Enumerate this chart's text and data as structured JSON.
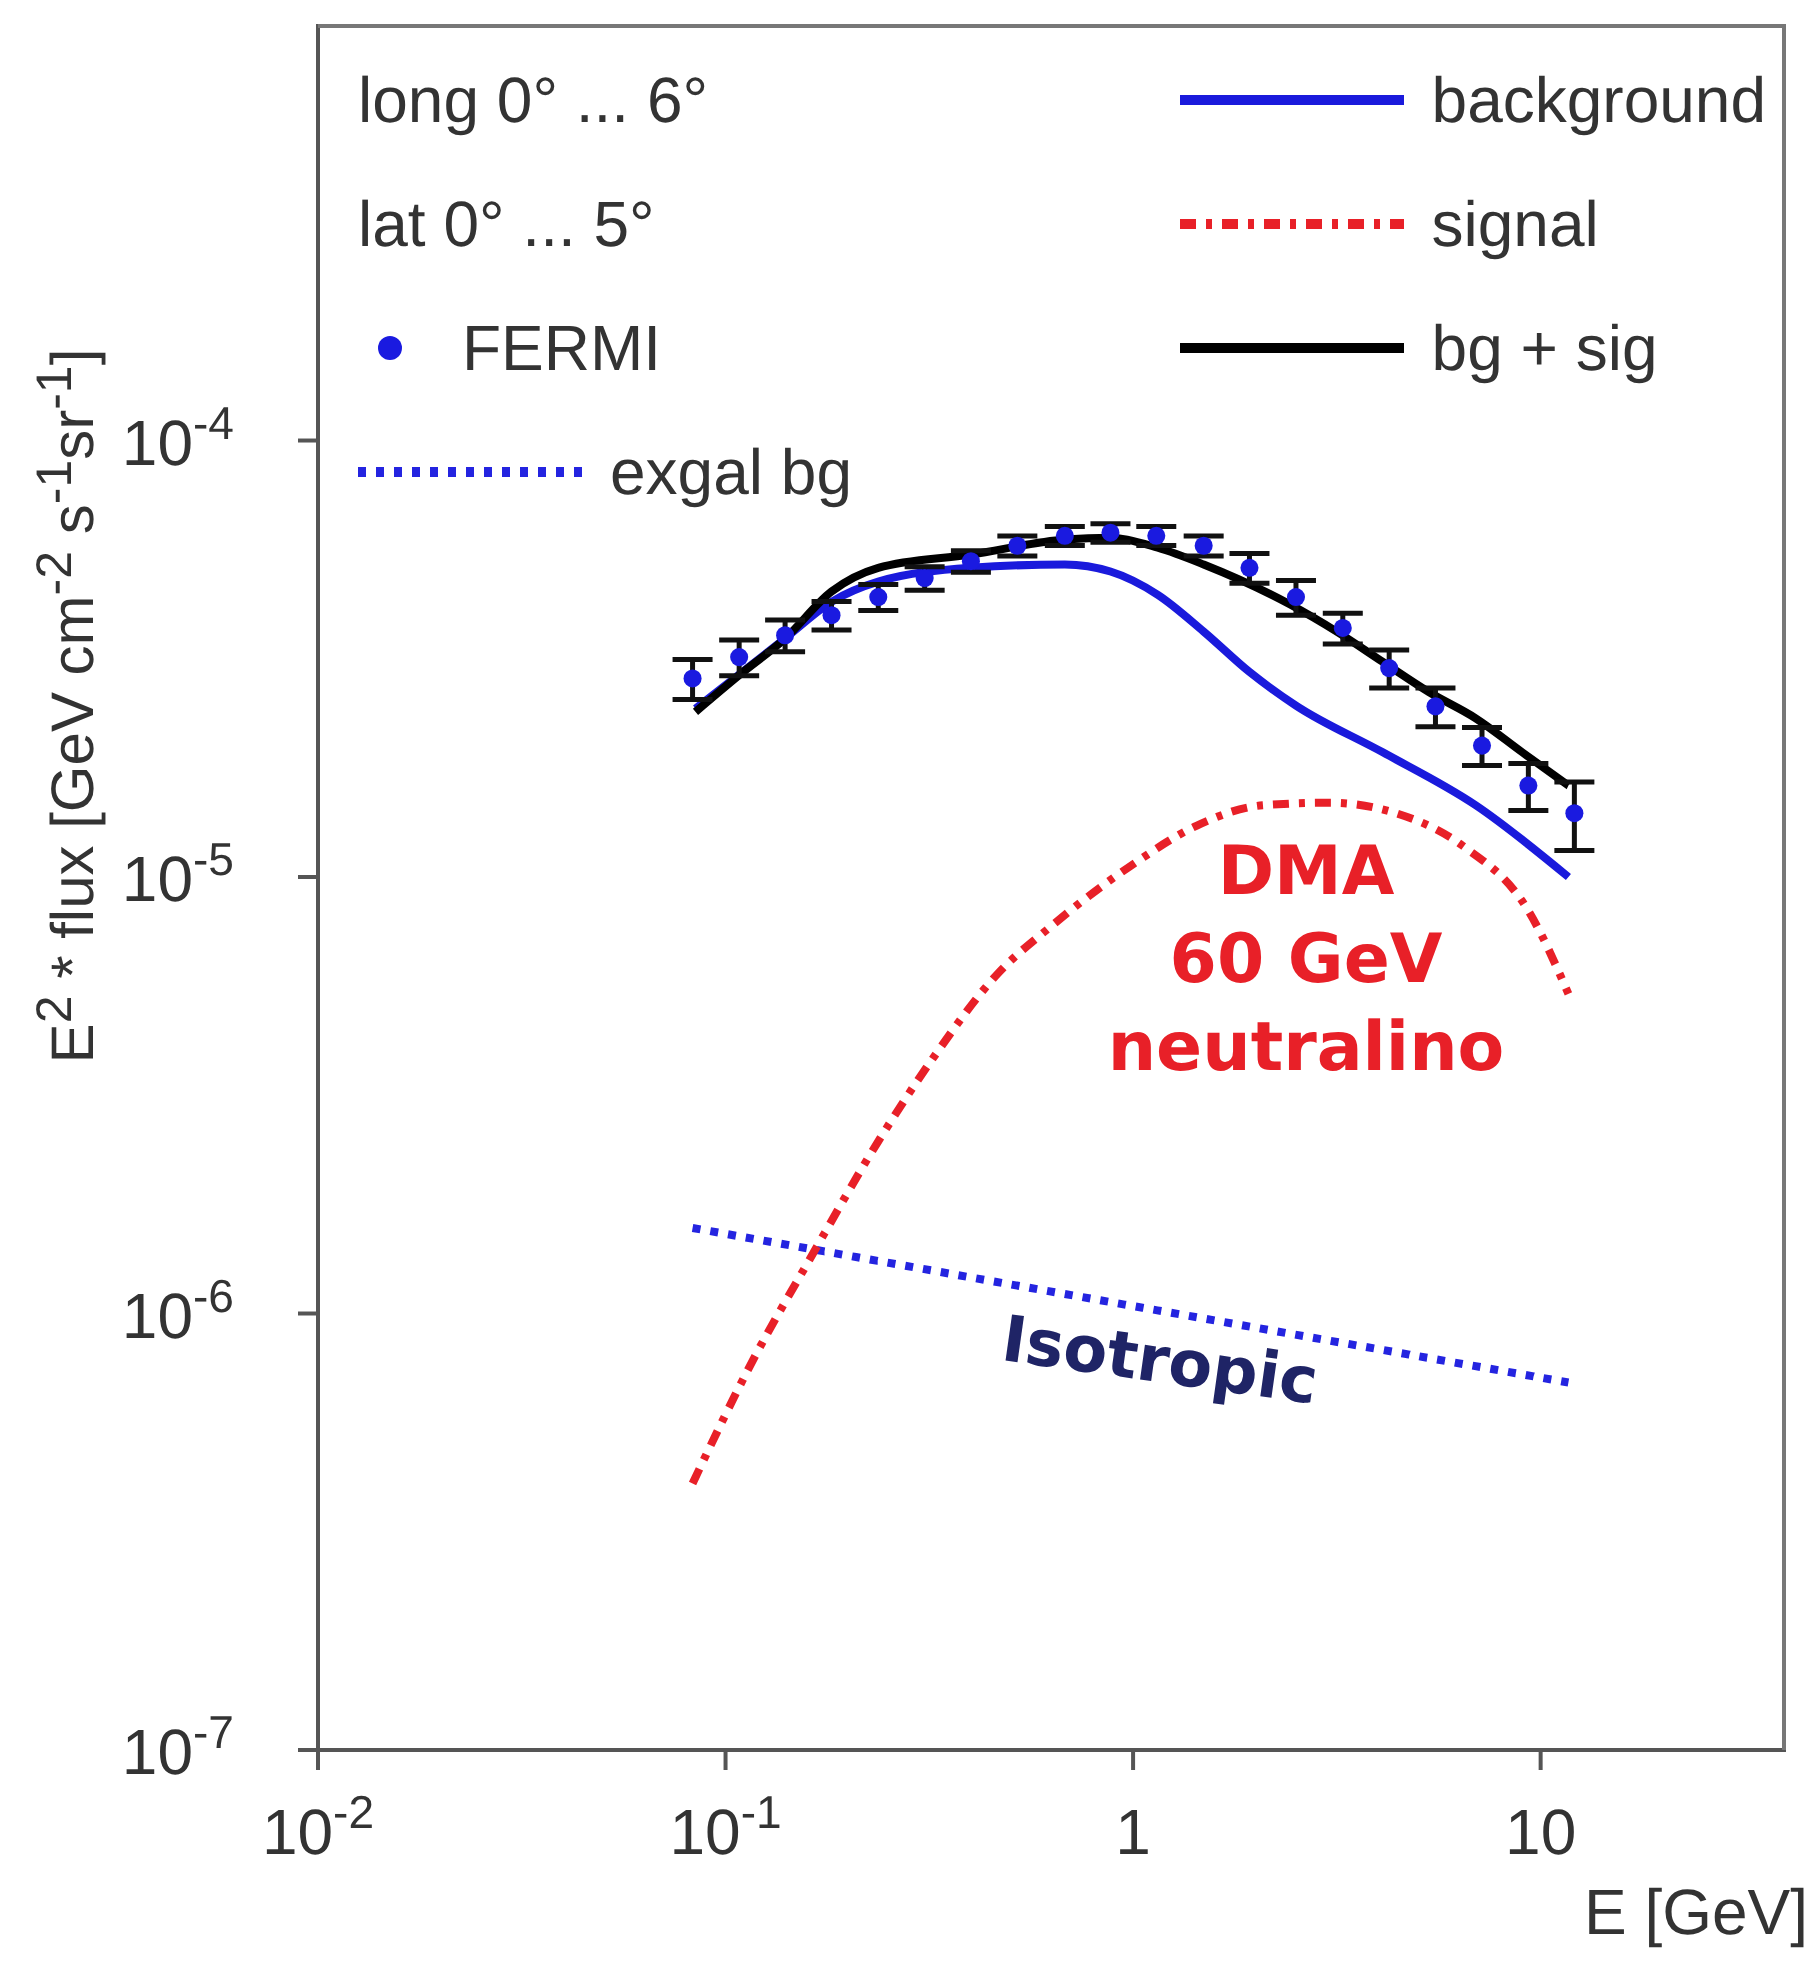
{
  "chart_data": {
    "type": "line",
    "log": "xy",
    "legend": "top",
    "xlabel": "E [GeV]",
    "ylabel": "E$^{2}$ * flux [GeV cm$^{-2}$ s$^{-1}$sr$^{-1}$]",
    "xlim": [
      0.01,
      40
    ],
    "ylim": [
      1e-07,
      0.0009
    ],
    "xticks": [
      {
        "value": 0.01,
        "label": "10$^{-2}$"
      },
      {
        "value": 0.1,
        "label": "10$^{-1}$"
      },
      1,
      10
    ],
    "yticks": [
      {
        "value": 1e-07,
        "label": "10$^{-7}$"
      },
      {
        "value": 1e-06,
        "label": "10$^{-6}$"
      },
      {
        "value": 1e-05,
        "label": "10$^{-5}$"
      },
      {
        "value": 0.0001,
        "label": "10$^{-4}$"
      }
    ],
    "annotations": [
      "long 0° ... 6°",
      "lat 0° ... 5°",
      "DMA\n60 GeV\nneutralino",
      "Isotropic"
    ],
    "series": [
      {
        "name": "FERMI",
        "type": "scatter",
        "marker": "circle",
        "color": "#1a1ae0",
        "x": [
          0.083,
          0.108,
          0.14,
          0.182,
          0.237,
          0.308,
          0.4,
          0.52,
          0.68,
          0.88,
          1.14,
          1.49,
          1.93,
          2.51,
          3.27,
          4.25,
          5.52,
          7.18,
          9.33,
          12.1
        ],
        "values": [
          2.85e-05,
          3.19e-05,
          3.58e-05,
          3.98e-05,
          4.38e-05,
          4.84e-05,
          5.29e-05,
          5.74e-05,
          6.05e-05,
          6.15e-05,
          6.05e-05,
          5.74e-05,
          5.11e-05,
          4.38e-05,
          3.72e-05,
          3.01e-05,
          2.46e-05,
          2e-05,
          1.62e-05,
          1.4e-05
        ],
        "errors": [
          3e-06,
          3e-06,
          3e-06,
          3e-06,
          3e-06,
          3e-06,
          3e-06,
          3e-06,
          3e-06,
          3e-06,
          3e-06,
          3e-06,
          4e-06,
          4e-06,
          3e-06,
          3e-06,
          2.5e-06,
          2e-06,
          2e-06,
          2.5e-06
        ]
      },
      {
        "name": "exgal bg",
        "line_style": "dotted",
        "color": "#2424e0",
        "x": [
          0.083,
          1,
          11.7
        ],
        "values": [
          1.57e-06,
          1.04e-06,
          6.95e-07
        ]
      },
      {
        "name": "background",
        "line_style": "solid",
        "color": "#1a1adc",
        "x": [
          0.0844,
          0.14,
          0.182,
          0.237,
          0.4,
          0.68,
          0.88,
          1.15,
          1.49,
          1.93,
          2.51,
          4.1,
          6.93,
          11.7
        ],
        "values": [
          2.43e-05,
          3.52e-05,
          4.27e-05,
          4.75e-05,
          5.11e-05,
          5.2e-05,
          5.01e-05,
          4.43e-05,
          3.65e-05,
          2.95e-05,
          2.47e-05,
          1.93e-05,
          1.46e-05,
          1e-05
        ]
      },
      {
        "name": "signal",
        "line_style": "dashdot",
        "color": "#e82028",
        "x": [
          0.083,
          0.116,
          0.163,
          0.237,
          0.32,
          0.465,
          0.628,
          0.986,
          1.43,
          2.08,
          3.04,
          4.42,
          6.43,
          9.38,
          11.7
        ],
        "values": [
          4.08e-07,
          7.73e-07,
          1.36e-06,
          2.48e-06,
          3.8e-06,
          6e-06,
          7.7e-06,
          1.06e-05,
          1.31e-05,
          1.46e-05,
          1.48e-05,
          1.4e-05,
          1.18e-05,
          8.3e-06,
          5.4e-06
        ]
      },
      {
        "name": "bg + sig",
        "line_style": "solid",
        "color": "#000000",
        "x": [
          0.0844,
          0.108,
          0.14,
          0.182,
          0.237,
          0.4,
          0.68,
          0.88,
          1.15,
          1.49,
          2.43,
          3.16,
          4.1,
          5.33,
          6.93,
          9.02,
          11.7
        ],
        "values": [
          2.39e-05,
          2.9e-05,
          3.52e-05,
          4.51e-05,
          5.11e-05,
          5.48e-05,
          5.93e-05,
          5.99e-05,
          5.68e-05,
          5.2e-05,
          4.21e-05,
          3.65e-05,
          3.11e-05,
          2.65e-05,
          2.31e-05,
          1.93e-05,
          1.62e-05
        ]
      }
    ]
  }
}
